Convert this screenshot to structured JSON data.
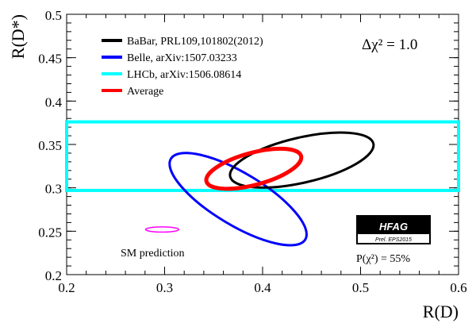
{
  "chart_data": {
    "type": "scatter",
    "title": "",
    "xlabel": "R(D)",
    "ylabel": "R(D*)",
    "xlim": [
      0.2,
      0.6
    ],
    "ylim": [
      0.2,
      0.5
    ],
    "x_ticks": [
      0.2,
      0.3,
      0.4,
      0.5,
      0.6
    ],
    "x_tick_labels": [
      "0.2",
      "0.3",
      "0.4",
      "0.5",
      "0.6"
    ],
    "y_ticks": [
      0.2,
      0.25,
      0.3,
      0.35,
      0.4,
      0.45,
      0.5
    ],
    "y_tick_labels": [
      "0.2",
      "0.25",
      "0.3",
      "0.35",
      "0.4",
      "0.45",
      "0.5"
    ],
    "legend_position": "top-left",
    "series": [
      {
        "name": "BaBar, PRL109,101802(2012)",
        "shape": "ellipse",
        "color": "#000000",
        "center": [
          0.44,
          0.332
        ],
        "semi_axes": [
          0.075,
          0.026
        ],
        "angle_deg": -13
      },
      {
        "name": "Belle, arXiv:1507.03233",
        "shape": "ellipse",
        "color": "#0000ff",
        "center": [
          0.375,
          0.287
        ],
        "semi_axes": [
          0.08,
          0.03
        ],
        "angle_deg": 31
      },
      {
        "name": "LHCb, arXiv:1506.08614",
        "shape": "band",
        "color": "#00ffff",
        "x_range": [
          0.2,
          0.6
        ],
        "y_range": [
          0.297,
          0.376
        ]
      },
      {
        "name": "Average",
        "shape": "ellipse",
        "color": "#ff0000",
        "center": [
          0.391,
          0.322
        ],
        "semi_axes": [
          0.05,
          0.0185
        ],
        "angle_deg": -15
      }
    ],
    "sm_prediction": {
      "label": "SM prediction",
      "color": "#ff00ff",
      "center": [
        0.2975,
        0.252
      ],
      "semi_axes": [
        0.017,
        0.003
      ]
    },
    "annotations": {
      "delta_chi2": "Δχ² = 1.0",
      "hfag_logo": "HFAG",
      "hfag_sub": "Prel. EPS2015",
      "p_chi2": "P(χ²) = 55%"
    }
  }
}
